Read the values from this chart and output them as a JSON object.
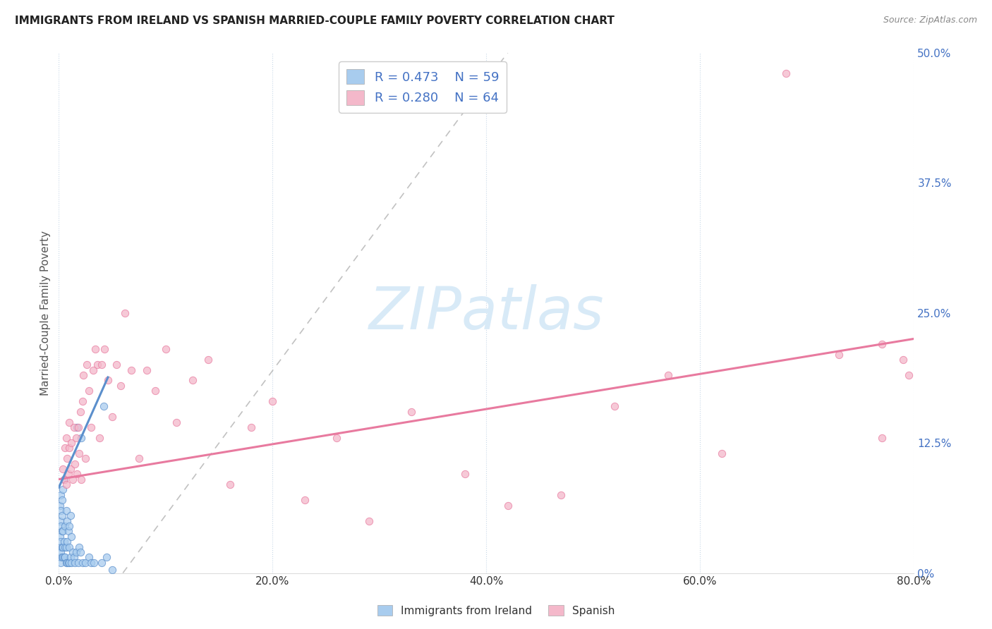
{
  "title": "IMMIGRANTS FROM IRELAND VS SPANISH MARRIED-COUPLE FAMILY POVERTY CORRELATION CHART",
  "source": "Source: ZipAtlas.com",
  "ylabel_label": "Married-Couple Family Poverty",
  "legend_label1": "Immigrants from Ireland",
  "legend_label2": "Spanish",
  "r1": 0.473,
  "n1": 59,
  "r2": 0.28,
  "n2": 64,
  "color_blue": "#A8CCEE",
  "color_pink": "#F4B8CA",
  "color_blue_dark": "#5B8FCC",
  "color_pink_dark": "#E87A9F",
  "color_legend_text": "#4472C4",
  "background": "#FFFFFF",
  "xlim": [
    0.0,
    0.8
  ],
  "ylim": [
    0.0,
    0.5
  ],
  "watermark": "ZIPatlas",
  "watermark_color": "#D8EAF7",
  "ireland_x": [
    0.001,
    0.001,
    0.001,
    0.001,
    0.001,
    0.002,
    0.002,
    0.002,
    0.002,
    0.002,
    0.002,
    0.003,
    0.003,
    0.003,
    0.003,
    0.003,
    0.004,
    0.004,
    0.004,
    0.004,
    0.005,
    0.005,
    0.005,
    0.006,
    0.006,
    0.006,
    0.007,
    0.007,
    0.007,
    0.008,
    0.008,
    0.008,
    0.009,
    0.009,
    0.01,
    0.01,
    0.01,
    0.011,
    0.011,
    0.012,
    0.012,
    0.013,
    0.014,
    0.015,
    0.016,
    0.017,
    0.018,
    0.019,
    0.02,
    0.021,
    0.022,
    0.025,
    0.028,
    0.03,
    0.033,
    0.04,
    0.042,
    0.045,
    0.05
  ],
  "ireland_y": [
    0.015,
    0.025,
    0.035,
    0.05,
    0.065,
    0.01,
    0.02,
    0.03,
    0.045,
    0.06,
    0.075,
    0.015,
    0.025,
    0.04,
    0.055,
    0.07,
    0.015,
    0.025,
    0.04,
    0.08,
    0.015,
    0.03,
    0.09,
    0.015,
    0.025,
    0.045,
    0.01,
    0.025,
    0.06,
    0.01,
    0.03,
    0.05,
    0.01,
    0.04,
    0.01,
    0.025,
    0.045,
    0.015,
    0.055,
    0.01,
    0.035,
    0.02,
    0.015,
    0.01,
    0.02,
    0.14,
    0.01,
    0.025,
    0.02,
    0.13,
    0.01,
    0.01,
    0.015,
    0.01,
    0.01,
    0.01,
    0.16,
    0.015,
    0.003
  ],
  "spanish_x": [
    0.004,
    0.005,
    0.006,
    0.007,
    0.007,
    0.008,
    0.009,
    0.01,
    0.01,
    0.011,
    0.012,
    0.013,
    0.014,
    0.015,
    0.016,
    0.017,
    0.018,
    0.019,
    0.02,
    0.021,
    0.022,
    0.023,
    0.025,
    0.026,
    0.028,
    0.03,
    0.032,
    0.034,
    0.036,
    0.038,
    0.04,
    0.043,
    0.046,
    0.05,
    0.054,
    0.058,
    0.062,
    0.068,
    0.075,
    0.082,
    0.09,
    0.1,
    0.11,
    0.125,
    0.14,
    0.16,
    0.18,
    0.2,
    0.23,
    0.26,
    0.29,
    0.33,
    0.38,
    0.42,
    0.47,
    0.52,
    0.57,
    0.62,
    0.68,
    0.73,
    0.77,
    0.77,
    0.79,
    0.795
  ],
  "spanish_y": [
    0.1,
    0.09,
    0.12,
    0.085,
    0.13,
    0.11,
    0.095,
    0.12,
    0.145,
    0.1,
    0.125,
    0.09,
    0.14,
    0.105,
    0.13,
    0.095,
    0.14,
    0.115,
    0.155,
    0.09,
    0.165,
    0.19,
    0.11,
    0.2,
    0.175,
    0.14,
    0.195,
    0.215,
    0.2,
    0.13,
    0.2,
    0.215,
    0.185,
    0.15,
    0.2,
    0.18,
    0.25,
    0.195,
    0.11,
    0.195,
    0.175,
    0.215,
    0.145,
    0.185,
    0.205,
    0.085,
    0.14,
    0.165,
    0.07,
    0.13,
    0.05,
    0.155,
    0.095,
    0.065,
    0.075,
    0.16,
    0.19,
    0.115,
    0.48,
    0.21,
    0.13,
    0.22,
    0.205,
    0.19
  ],
  "ireland_line_x": [
    0.0,
    0.046
  ],
  "ireland_line_y": [
    0.082,
    0.188
  ],
  "spanish_line_x": [
    0.0,
    0.8
  ],
  "spanish_line_y": [
    0.09,
    0.225
  ],
  "dash_line_x": [
    0.06,
    0.42
  ],
  "dash_line_y": [
    0.0,
    0.5
  ]
}
